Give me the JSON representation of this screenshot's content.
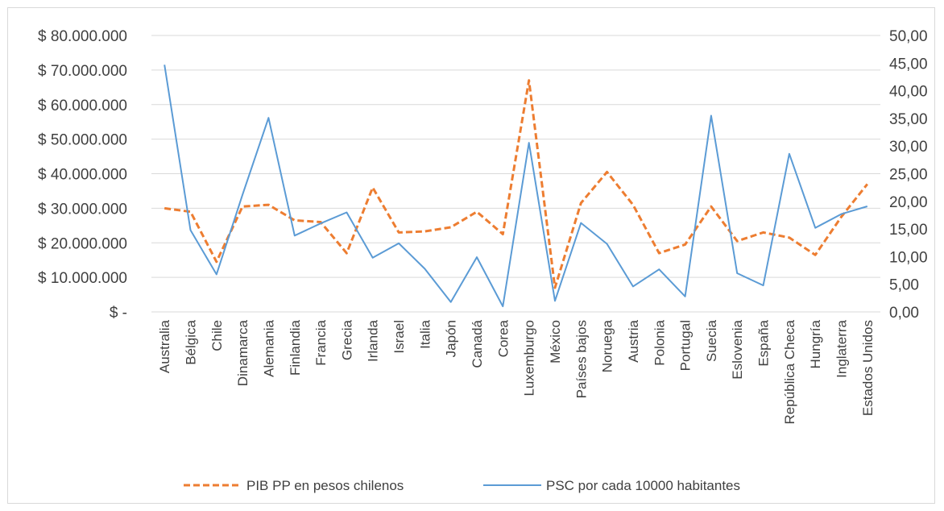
{
  "chart_data": {
    "type": "line",
    "categories": [
      "Australia",
      "Bélgica",
      "Chile",
      "Dinamarca",
      "Alemania",
      "Finlandia",
      "Francia",
      "Grecia",
      "Irlanda",
      "Israel",
      "Italia",
      "Japón",
      "Canadá",
      "Corea",
      "Luxemburgo",
      "México",
      "Países bajos",
      "Noruega",
      "Austria",
      "Polonia",
      "Portugal",
      "Suecia",
      "Eslovenia",
      "España",
      "República Checa",
      "Hungría",
      "Inglaterra",
      "Estados Unidos"
    ],
    "y_left": {
      "ylim": [
        0,
        80000000
      ],
      "tick_labels": [
        "$ -",
        "$ 10.000.000",
        "$ 20.000.000",
        "$ 30.000.000",
        "$ 40.000.000",
        "$ 50.000.000",
        "$ 60.000.000",
        "$ 70.000.000",
        "$ 80.000.000"
      ]
    },
    "y_right": {
      "ylim": [
        0,
        50
      ],
      "tick_labels": [
        "0,00",
        "5,00",
        "10,00",
        "15,00",
        "20,00",
        "25,00",
        "30,00",
        "35,00",
        "40,00",
        "45,00",
        "50,00"
      ]
    },
    "series": [
      {
        "name": "PIB PP en pesos chilenos",
        "axis": "left",
        "color": "#ed7d31",
        "style": "dashed",
        "values": [
          30000000,
          29000000,
          14500000,
          30500000,
          31000000,
          26500000,
          26000000,
          17000000,
          36000000,
          23000000,
          23300000,
          24500000,
          29000000,
          22500000,
          67000000,
          7000000,
          31500000,
          40500000,
          31000000,
          17000000,
          19500000,
          30500000,
          20500000,
          23000000,
          21500000,
          16500000,
          27500000,
          37000000
        ]
      },
      {
        "name": "PSC por cada 10000 habitantes",
        "axis": "right",
        "color": "#5b9bd5",
        "style": "solid",
        "values": [
          44.7,
          14.8,
          6.8,
          21.2,
          35.1,
          13.8,
          16.0,
          18.0,
          9.8,
          12.4,
          7.8,
          1.8,
          9.9,
          1.0,
          30.6,
          2.0,
          16.1,
          12.3,
          4.6,
          7.7,
          2.8,
          35.5,
          7.0,
          4.8,
          28.6,
          15.2,
          17.7,
          19.1
        ]
      }
    ],
    "legend_position": "bottom",
    "grid": true
  }
}
